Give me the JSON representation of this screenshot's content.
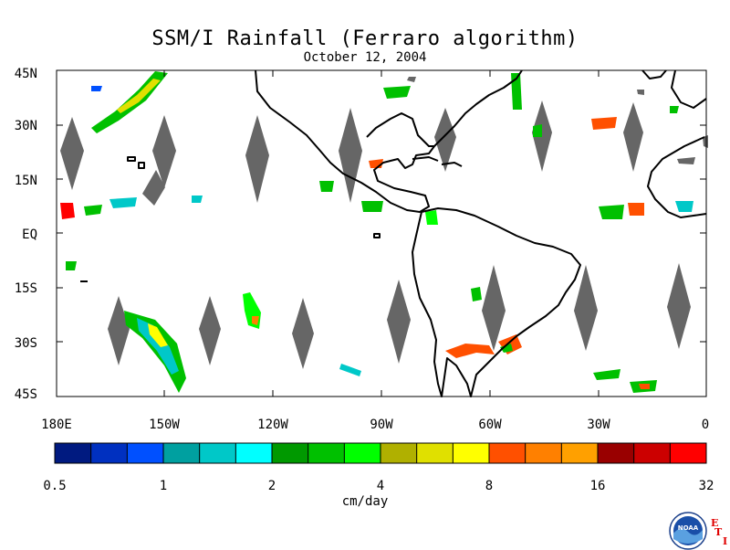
{
  "title": "SSM/I Rainfall (Ferraro algorithm)",
  "date": "October 12, 2004",
  "lat_labels": [
    "45N",
    "30N",
    "15N",
    "EQ",
    "15S",
    "30S",
    "45S"
  ],
  "lon_labels": [
    "180E",
    "150W",
    "120W",
    "90W",
    "60W",
    "30W",
    "0"
  ],
  "colorbar": {
    "unit": "cm/day",
    "tick_labels": [
      "0.5",
      "1",
      "2",
      "4",
      "8",
      "16",
      "32"
    ],
    "colors": [
      "#001a80",
      "#0030c0",
      "#0050ff",
      "#00a0a0",
      "#00c8c8",
      "#00ffff",
      "#009900",
      "#00c000",
      "#00ff00",
      "#b0b000",
      "#e0e000",
      "#ffff00",
      "#ff5000",
      "#ff8000",
      "#ffa000",
      "#990000",
      "#cc0000",
      "#ff0000"
    ]
  },
  "map": {
    "land_outline_color": "#000000",
    "swath_gap_color": "#666666",
    "background": "#ffffff"
  },
  "logo": {
    "name": "noaa-logo",
    "text": "NOAA"
  },
  "eti_letters": [
    "E",
    "T",
    "I"
  ]
}
